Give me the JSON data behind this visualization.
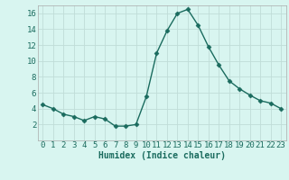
{
  "x": [
    0,
    1,
    2,
    3,
    4,
    5,
    6,
    7,
    8,
    9,
    10,
    11,
    12,
    13,
    14,
    15,
    16,
    17,
    18,
    19,
    20,
    21,
    22,
    23
  ],
  "y": [
    4.5,
    4.0,
    3.3,
    3.0,
    2.5,
    3.0,
    2.7,
    1.8,
    1.8,
    2.0,
    5.5,
    11.0,
    13.8,
    16.0,
    16.5,
    14.5,
    11.8,
    9.5,
    7.5,
    6.5,
    5.7,
    5.0,
    4.7,
    4.0
  ],
  "line_color": "#1a6b5e",
  "marker": "D",
  "marker_size": 2.5,
  "background_color": "#d8f5f0",
  "grid_color": "#c0ddd8",
  "xlabel": "Humidex (Indice chaleur)",
  "xlabel_fontsize": 7,
  "tick_fontsize": 6.5,
  "ylim": [
    0,
    17
  ],
  "xlim": [
    -0.5,
    23.5
  ],
  "yticks": [
    2,
    4,
    6,
    8,
    10,
    12,
    14,
    16
  ],
  "xticks": [
    0,
    1,
    2,
    3,
    4,
    5,
    6,
    7,
    8,
    9,
    10,
    11,
    12,
    13,
    14,
    15,
    16,
    17,
    18,
    19,
    20,
    21,
    22,
    23
  ],
  "tick_label_color": "#1a6b5e",
  "spine_color": "#aaaaaa"
}
